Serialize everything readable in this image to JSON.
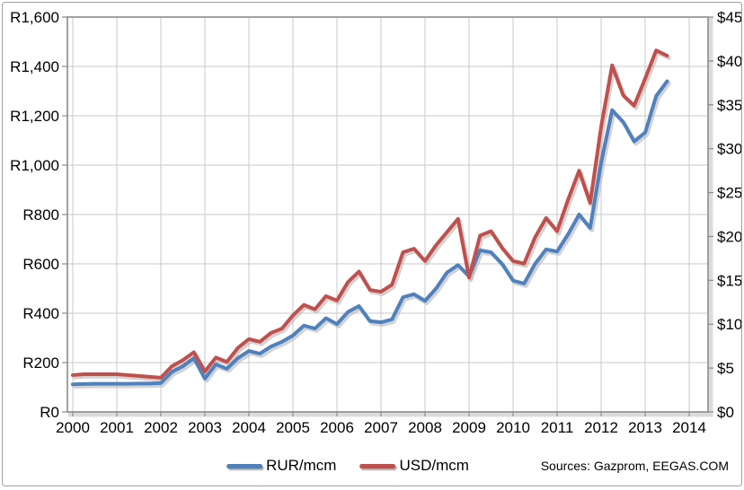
{
  "legend": {
    "items": [
      {
        "label": "RUR/mcm",
        "color": "#4F81BD"
      },
      {
        "label": "USD/mcm",
        "color": "#C0504D"
      }
    ]
  },
  "source_note": "Sources: Gazprom, EEGAS.COM",
  "chart_data": {
    "type": "line",
    "title": "",
    "grid": true,
    "legend_position": "bottom",
    "x_axis": {
      "range": [
        2000,
        2014.4
      ],
      "tick_step": 1,
      "tick_labels": [
        "2000",
        "2001",
        "2002",
        "2003",
        "2004",
        "2005",
        "2006",
        "2007",
        "2008",
        "2009",
        "2010",
        "2011",
        "2012",
        "2013",
        "2014"
      ]
    },
    "left_axis": {
      "min": 0,
      "max": 1600,
      "step": 200,
      "tick_labels": [
        "R0",
        "R200",
        "R400",
        "R600",
        "R800",
        "R1,000",
        "R1,200",
        "R1,400",
        "R1,600"
      ]
    },
    "right_axis": {
      "min": 0,
      "max": 45,
      "step": 5,
      "tick_labels": [
        "$0",
        "$5",
        "$10",
        "$15",
        "$20",
        "$25",
        "$30",
        "$35",
        "$40",
        "$45"
      ]
    },
    "x": [
      2000,
      2000.25,
      2000.5,
      2000.75,
      2001,
      2001.25,
      2001.5,
      2001.75,
      2002,
      2002.25,
      2002.5,
      2002.75,
      2003,
      2003.25,
      2003.5,
      2003.75,
      2004,
      2004.25,
      2004.5,
      2004.75,
      2005,
      2005.25,
      2005.5,
      2005.75,
      2006,
      2006.25,
      2006.5,
      2006.75,
      2007,
      2007.25,
      2007.5,
      2007.75,
      2008,
      2008.25,
      2008.5,
      2008.75,
      2009,
      2009.25,
      2009.5,
      2009.75,
      2010,
      2010.25,
      2010.5,
      2010.75,
      2011,
      2011.25,
      2011.5,
      2011.75,
      2012,
      2012.25,
      2012.5,
      2012.75,
      2013,
      2013.25,
      2013.5
    ],
    "series": [
      {
        "name": "RUR/mcm",
        "axis": "left",
        "color": "#4F81BD",
        "values": [
          112,
          113,
          114,
          114,
          114,
          114,
          115,
          115,
          117,
          162,
          185,
          218,
          135,
          193,
          175,
          218,
          247,
          236,
          265,
          284,
          310,
          350,
          338,
          380,
          356,
          405,
          429,
          368,
          363,
          375,
          465,
          477,
          450,
          500,
          565,
          595,
          550,
          655,
          647,
          600,
          532,
          520,
          600,
          659,
          650,
          720,
          800,
          745,
          1010,
          1223,
          1175,
          1096,
          1132,
          1280,
          1340
        ]
      },
      {
        "name": "USD/mcm",
        "axis": "right",
        "color": "#C0504D",
        "values": [
          4.2,
          4.3,
          4.3,
          4.3,
          4.3,
          4.2,
          4.1,
          4.0,
          3.9,
          5.2,
          5.9,
          6.8,
          4.6,
          6.2,
          5.7,
          7.3,
          8.3,
          8.0,
          9.0,
          9.5,
          11.0,
          12.2,
          11.7,
          13.2,
          12.7,
          14.8,
          16.0,
          13.9,
          13.7,
          14.5,
          18.2,
          18.6,
          17.2,
          19.0,
          20.5,
          22.0,
          15.3,
          20.1,
          20.6,
          18.7,
          17.2,
          16.9,
          19.9,
          22.1,
          20.6,
          24.2,
          27.5,
          23.8,
          32.5,
          39.5,
          36.1,
          34.9,
          38.0,
          41.2,
          40.6
        ]
      }
    ]
  }
}
